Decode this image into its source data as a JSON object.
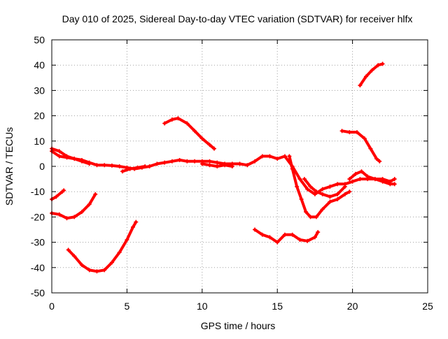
{
  "chart_data": {
    "type": "scatter",
    "title": "Day 010 of 2025, Sidereal Day-to-day VTEC variation (SDTVAR) for receiver hlfx",
    "xlabel": "GPS time / hours",
    "ylabel": "SDTVAR / TECUs",
    "xlim": [
      0,
      25
    ],
    "ylim": [
      -50,
      50
    ],
    "xticks": [
      0,
      5,
      10,
      15,
      20,
      25
    ],
    "yticks": [
      -50,
      -40,
      -30,
      -20,
      -10,
      0,
      10,
      20,
      30,
      40,
      50
    ],
    "grid": true,
    "marker": "+",
    "color": "#ff0000",
    "series": [
      {
        "name": "s1",
        "points": [
          [
            0,
            6
          ],
          [
            0.5,
            4
          ],
          [
            1,
            3.5
          ],
          [
            1.5,
            3
          ],
          [
            2,
            2.5
          ],
          [
            2.5,
            1.5
          ],
          [
            3,
            0.5
          ],
          [
            3.5,
            0.5
          ],
          [
            4,
            0.3
          ],
          [
            4.5,
            0
          ],
          [
            5,
            -0.5
          ],
          [
            5.5,
            -1
          ],
          [
            6,
            -0.5
          ],
          [
            6.5,
            0
          ],
          [
            7,
            1
          ],
          [
            7.5,
            1.5
          ],
          [
            8,
            2
          ],
          [
            8.5,
            2.5
          ],
          [
            9,
            2
          ],
          [
            9.5,
            2
          ],
          [
            10,
            2
          ],
          [
            10.5,
            2
          ],
          [
            11,
            1.5
          ],
          [
            11.5,
            1
          ],
          [
            12,
            1
          ],
          [
            12.5,
            1
          ],
          [
            13,
            0.5
          ],
          [
            13.5,
            2
          ],
          [
            14,
            4
          ],
          [
            14.5,
            4
          ],
          [
            15,
            3
          ],
          [
            15.5,
            4
          ],
          [
            16,
            0
          ],
          [
            16.5,
            -5
          ],
          [
            17,
            -9
          ],
          [
            17.5,
            -11
          ],
          [
            18,
            -9
          ],
          [
            18.5,
            -8
          ],
          [
            19,
            -7
          ],
          [
            19.5,
            -7
          ],
          [
            20,
            -6
          ],
          [
            20.5,
            -5
          ],
          [
            21,
            -5
          ],
          [
            21.5,
            -5
          ],
          [
            22,
            -6
          ],
          [
            22.5,
            -7
          ],
          [
            22.8,
            -7
          ]
        ]
      },
      {
        "name": "s2",
        "points": [
          [
            0,
            7
          ],
          [
            0.5,
            6
          ],
          [
            1,
            4
          ],
          [
            1.5,
            3
          ],
          [
            2,
            2
          ],
          [
            2.5,
            1
          ]
        ]
      },
      {
        "name": "s3",
        "points": [
          [
            4.7,
            -2
          ],
          [
            5.2,
            -1
          ],
          [
            5.7,
            -0.5
          ],
          [
            6.2,
            0
          ]
        ]
      },
      {
        "name": "s4",
        "points": [
          [
            10,
            1
          ],
          [
            10.5,
            0.5
          ],
          [
            11,
            0
          ],
          [
            11.5,
            0.5
          ],
          [
            12,
            0
          ]
        ]
      },
      {
        "name": "s5",
        "points": [
          [
            16.8,
            -5
          ],
          [
            17.2,
            -8
          ],
          [
            17.6,
            -10
          ],
          [
            18,
            -11
          ],
          [
            18.5,
            -12
          ],
          [
            19,
            -11
          ],
          [
            19.5,
            -8
          ]
        ]
      },
      {
        "name": "s6",
        "points": [
          [
            19.8,
            -5
          ],
          [
            20.2,
            -3
          ],
          [
            20.6,
            -2
          ],
          [
            21,
            -4
          ],
          [
            21.5,
            -5
          ],
          [
            22,
            -5
          ],
          [
            22.5,
            -6
          ],
          [
            22.8,
            -5
          ]
        ]
      },
      {
        "name": "s7",
        "points": [
          [
            0,
            -13
          ],
          [
            0.3,
            -12
          ],
          [
            0.7,
            -10
          ],
          [
            0.8,
            -9.5
          ]
        ]
      },
      {
        "name": "s8",
        "points": [
          [
            0,
            -18.5
          ],
          [
            0.5,
            -19
          ],
          [
            1,
            -20.5
          ],
          [
            1.5,
            -20
          ],
          [
            2,
            -18
          ],
          [
            2.5,
            -15
          ],
          [
            2.9,
            -11
          ]
        ]
      },
      {
        "name": "s9",
        "points": [
          [
            1.1,
            -33
          ],
          [
            1.5,
            -35.5
          ],
          [
            2,
            -39
          ],
          [
            2.5,
            -41
          ],
          [
            3,
            -41.5
          ],
          [
            3.5,
            -41
          ],
          [
            4,
            -38
          ],
          [
            4.5,
            -34
          ],
          [
            5,
            -29
          ],
          [
            5.4,
            -24
          ],
          [
            5.6,
            -22
          ]
        ]
      },
      {
        "name": "s10",
        "points": [
          [
            7.5,
            17
          ],
          [
            8,
            18.5
          ],
          [
            8.4,
            19
          ],
          [
            9,
            17
          ],
          [
            9.5,
            14
          ],
          [
            10,
            11
          ],
          [
            10.5,
            8.5
          ],
          [
            10.8,
            7
          ]
        ]
      },
      {
        "name": "s11",
        "points": [
          [
            13.5,
            -25
          ],
          [
            14,
            -27
          ],
          [
            14.5,
            -28
          ],
          [
            15,
            -30
          ],
          [
            15.5,
            -27
          ],
          [
            16,
            -27
          ],
          [
            16.5,
            -29
          ],
          [
            17,
            -29.5
          ],
          [
            17.5,
            -28
          ],
          [
            17.7,
            -26
          ]
        ]
      },
      {
        "name": "s12",
        "points": [
          [
            15.8,
            4
          ],
          [
            16,
            -1
          ],
          [
            16.3,
            -8
          ],
          [
            16.6,
            -13
          ],
          [
            16.9,
            -18
          ],
          [
            17.2,
            -20
          ],
          [
            17.6,
            -20
          ],
          [
            18,
            -17
          ],
          [
            18.5,
            -14
          ],
          [
            19,
            -13
          ],
          [
            19.5,
            -11
          ],
          [
            19.8,
            -10
          ]
        ]
      },
      {
        "name": "s13",
        "points": [
          [
            19.3,
            14
          ],
          [
            19.8,
            13.5
          ],
          [
            20.3,
            13.5
          ],
          [
            20.8,
            11
          ],
          [
            21.2,
            7
          ],
          [
            21.6,
            3
          ],
          [
            21.8,
            2
          ]
        ]
      },
      {
        "name": "s14",
        "points": [
          [
            20.5,
            32
          ],
          [
            20.9,
            35.5
          ],
          [
            21.3,
            38
          ],
          [
            21.7,
            40
          ],
          [
            22,
            40.5
          ]
        ]
      }
    ]
  }
}
